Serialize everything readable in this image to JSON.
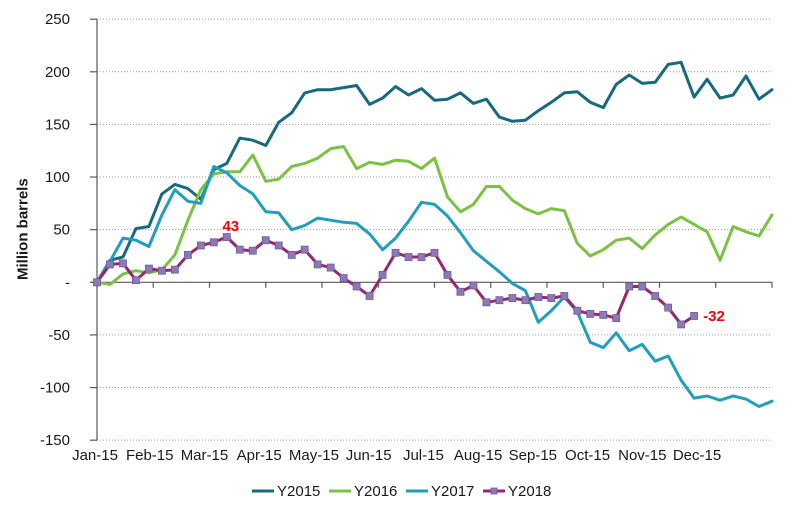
{
  "chart_data": {
    "type": "line",
    "title": "",
    "ylabel": "Million barrels",
    "xlabel": "",
    "ylim": [
      -150,
      250
    ],
    "grid": "horizontal-dotted",
    "legend_position": "bottom-center",
    "x_unit": "weeks of 2015 (weekly points)",
    "x_tick_labels": [
      "Jan-15",
      "Feb-15",
      "Mar-15",
      "Apr-15",
      "May-15",
      "Jun-15",
      "Jul-15",
      "Aug-15",
      "Sep-15",
      "Oct-15",
      "Nov-15",
      "Dec-15"
    ],
    "y_tick_labels": [
      "250",
      "200",
      "150",
      "100",
      "50",
      "-",
      "-50",
      "-100",
      "-150"
    ],
    "y_tick_values": [
      250,
      200,
      150,
      100,
      50,
      0,
      -50,
      -100,
      -150
    ],
    "colors": {
      "axis": "#595959",
      "gridline": "#999999",
      "text": "#1a1a1a",
      "annotation": "#ff0000"
    },
    "series": [
      {
        "name": "Y2015",
        "color": "#176a7d",
        "marker": "none",
        "values": [
          0,
          21,
          24,
          51,
          53,
          84,
          93,
          89,
          79,
          107,
          113,
          137,
          135,
          130,
          152,
          161,
          180,
          183,
          183,
          185,
          187,
          169,
          175,
          186,
          178,
          184,
          173,
          174,
          180,
          170,
          174,
          157,
          153,
          154,
          163,
          171,
          180,
          181,
          171,
          166,
          188,
          197,
          189,
          190,
          207,
          209,
          176,
          193,
          175,
          178,
          196,
          174,
          183
        ]
      },
      {
        "name": "Y2016",
        "color": "#7cc242",
        "marker": "none",
        "values": [
          0,
          -2,
          8,
          11,
          9,
          12,
          26,
          59,
          88,
          103,
          105,
          105,
          121,
          96,
          98,
          110,
          113,
          118,
          127,
          129,
          108,
          114,
          112,
          116,
          115,
          108,
          118,
          81,
          67,
          74,
          91,
          91,
          78,
          70,
          65,
          70,
          68,
          37,
          25,
          31,
          40,
          42,
          32,
          45,
          55,
          62,
          55,
          48,
          21,
          53,
          48,
          44,
          64
        ]
      },
      {
        "name": "Y2017",
        "color": "#219ebd",
        "marker": "none",
        "values": [
          0,
          20,
          42,
          40,
          34,
          64,
          88,
          77,
          75,
          110,
          104,
          92,
          84,
          67,
          66,
          50,
          54,
          61,
          59,
          57,
          56,
          46,
          31,
          42,
          58,
          76,
          74,
          63,
          47,
          30,
          20,
          10,
          -1,
          -8,
          -38,
          -27,
          -14,
          -28,
          -57,
          -62,
          -48,
          -65,
          -59,
          -75,
          -70,
          -93,
          -110,
          -108,
          -112,
          -108,
          -111,
          -118,
          -113
        ]
      },
      {
        "name": "Y2018",
        "color": "#97276f",
        "marker": "square",
        "marker_color": "#8d7ab5",
        "marker_edge_color": "#6f5a9c",
        "values": [
          0,
          17,
          18,
          2,
          13,
          11,
          12,
          26,
          35,
          38,
          43,
          31,
          30,
          40,
          35,
          26,
          31,
          17,
          14,
          4,
          -4,
          -13,
          7,
          28,
          24,
          24,
          28,
          7,
          -9,
          -3,
          -19,
          -17,
          -15,
          -17,
          -14,
          -15,
          -13,
          -27,
          -30,
          -31,
          -34,
          -4,
          -4,
          -13,
          -24,
          -40,
          -32
        ]
      }
    ],
    "annotations": [
      {
        "text": "43",
        "series": "Y2018",
        "point_index": 10,
        "position": "above",
        "color": "#ff0000"
      },
      {
        "text": "-32",
        "series": "Y2018",
        "point_index": 46,
        "position": "right",
        "color": "#ff0000"
      }
    ]
  }
}
